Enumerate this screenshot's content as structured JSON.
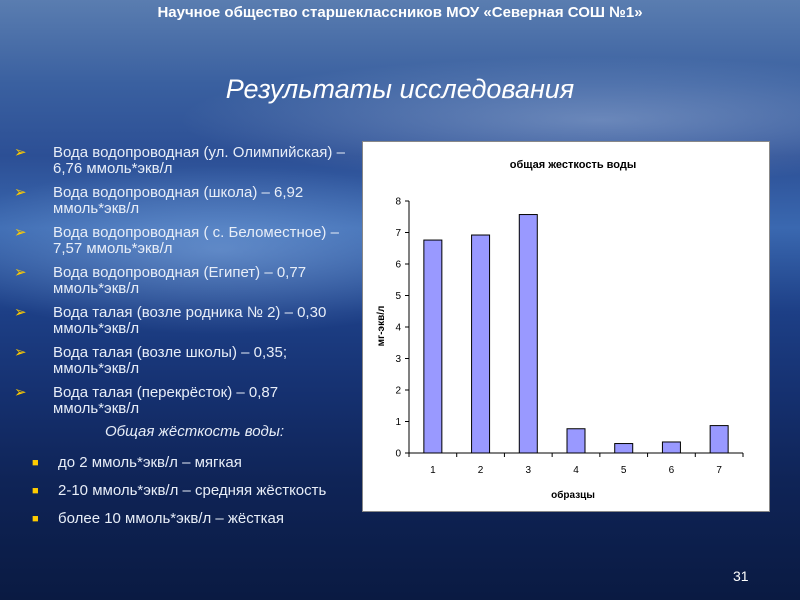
{
  "header": "Научное общество старшеклассников МОУ «Северная СОШ №1»",
  "title": "Результаты исследования",
  "arrow_items": [
    "Вода водопроводная (ул. Олимпийская) – 6,76 ммоль*экв/л",
    "Вода водопроводная (школа) – 6,92 ммоль*экв/л",
    "Вода водопроводная ( с. Беломестное) – 7,57 ммоль*экв/л",
    "Вода водопроводная (Египет) – 0,77 ммоль*экв/л",
    "Вода талая (возле родника № 2) – 0,30 ммоль*экв/л",
    "Вода талая (возле школы) – 0,35; ммоль*экв/л",
    "Вода талая (перекрёсток) – 0,87 ммоль*экв/л"
  ],
  "subheading": "Общая жёсткость воды:",
  "dot_items": [
    "до 2 ммоль*экв/л – мягкая",
    "2-10 ммоль*экв/л – средняя жёсткость",
    "более 10  ммоль*экв/л – жёсткая"
  ],
  "page_number": "31",
  "colors": {
    "bar": "#9999ff",
    "bullet": "#ffcc00"
  },
  "chart_data": {
    "type": "bar",
    "title": "общая жесткость воды",
    "xlabel": "образцы",
    "ylabel": "мг-экв/л",
    "categories": [
      "1",
      "2",
      "3",
      "4",
      "5",
      "6",
      "7"
    ],
    "values": [
      6.76,
      6.92,
      7.57,
      0.77,
      0.3,
      0.35,
      0.87
    ],
    "ylim": [
      0,
      8
    ],
    "yticks": [
      "0",
      "1",
      "2",
      "3",
      "4",
      "5",
      "6",
      "7",
      "8"
    ],
    "grid": false,
    "legend": "none"
  }
}
